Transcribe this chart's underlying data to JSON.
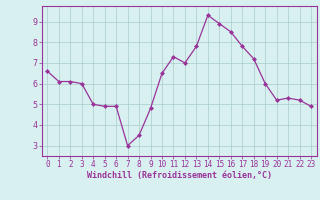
{
  "x": [
    0,
    1,
    2,
    3,
    4,
    5,
    6,
    7,
    8,
    9,
    10,
    11,
    12,
    13,
    14,
    15,
    16,
    17,
    18,
    19,
    20,
    21,
    22,
    23
  ],
  "y": [
    6.6,
    6.1,
    6.1,
    6.0,
    5.0,
    4.9,
    4.9,
    3.0,
    3.5,
    4.8,
    6.5,
    7.3,
    7.0,
    7.8,
    9.3,
    8.9,
    8.5,
    7.8,
    7.2,
    6.0,
    5.2,
    5.3,
    5.2,
    4.9
  ],
  "line_color": "#993399",
  "marker": "D",
  "marker_size": 2,
  "bg_color": "#d8f0f0",
  "grid_color": "#aacccc",
  "xlabel": "Windchill (Refroidissement éolien,°C)",
  "xlabel_color": "#993399",
  "tick_color": "#993399",
  "spine_color": "#993399",
  "ylim": [
    2.5,
    9.75
  ],
  "xlim": [
    -0.5,
    23.5
  ],
  "yticks": [
    3,
    4,
    5,
    6,
    7,
    8,
    9
  ],
  "xticks": [
    0,
    1,
    2,
    3,
    4,
    5,
    6,
    7,
    8,
    9,
    10,
    11,
    12,
    13,
    14,
    15,
    16,
    17,
    18,
    19,
    20,
    21,
    22,
    23
  ]
}
